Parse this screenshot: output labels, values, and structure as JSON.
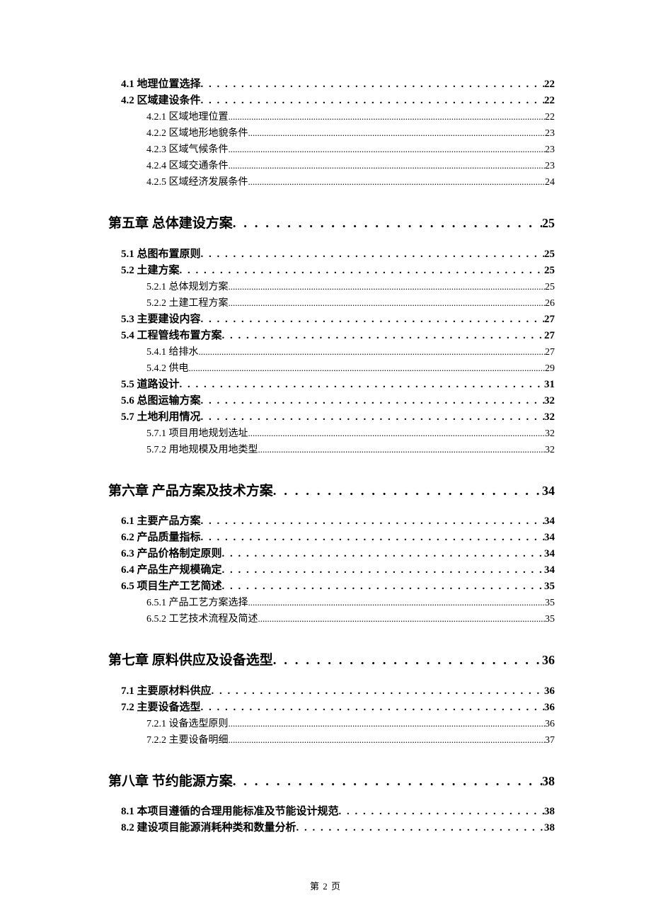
{
  "footer": "第 2 页",
  "dot1": " . . . . . . . . . . . . . . . . . . . . . . . . . . . . . . . . . . . . . . . . . . . . . . . . . . . . . . . . . . . . . . .",
  "dot2": " . . . . . . . . . . . . . . . . . . . . . . . . . . . . . . . . . . . . . . . . . . . . . . . . . . . . . . . . . . . . . . . . . . . . . . . . . . . . . . . . . .",
  "dot3": "..............................................................................................................................................................................",
  "entries": [
    {
      "level": 2,
      "label": "4.1 地理位置选择",
      "page": "22"
    },
    {
      "level": 2,
      "label": "4.2 区域建设条件",
      "page": "22"
    },
    {
      "level": 3,
      "label": "4.2.1 区域地理位置",
      "page": "22"
    },
    {
      "level": 3,
      "label": "4.2.2 区域地形地貌条件",
      "page": "23"
    },
    {
      "level": 3,
      "label": "4.2.3 区域气候条件",
      "page": "23"
    },
    {
      "level": 3,
      "label": "4.2.4 区域交通条件",
      "page": "23"
    },
    {
      "level": 3,
      "label": "4.2.5 区域经济发展条件",
      "page": "24"
    },
    {
      "level": 1,
      "label": "第五章 总体建设方案",
      "page": "25"
    },
    {
      "level": 2,
      "label": "5.1 总图布置原则",
      "page": "25"
    },
    {
      "level": 2,
      "label": "5.2 土建方案",
      "page": "25"
    },
    {
      "level": 3,
      "label": "5.2.1 总体规划方案",
      "page": "25"
    },
    {
      "level": 3,
      "label": "5.2.2 土建工程方案",
      "page": "26"
    },
    {
      "level": 2,
      "label": "5.3 主要建设内容",
      "page": "27"
    },
    {
      "level": 2,
      "label": "5.4 工程管线布置方案",
      "page": "27"
    },
    {
      "level": 3,
      "label": "5.4.1 给排水",
      "page": "27"
    },
    {
      "level": 3,
      "label": "5.4.2 供电",
      "page": "29"
    },
    {
      "level": 2,
      "label": "5.5 道路设计",
      "page": "31"
    },
    {
      "level": 2,
      "label": "5.6 总图运输方案",
      "page": "32"
    },
    {
      "level": 2,
      "label": "5.7 土地利用情况",
      "page": "32"
    },
    {
      "level": 3,
      "label": "5.7.1 项目用地规划选址",
      "page": "32"
    },
    {
      "level": 3,
      "label": "5.7.2 用地规模及用地类型",
      "page": "32"
    },
    {
      "level": 1,
      "label": "第六章 产品方案及技术方案",
      "page": "34"
    },
    {
      "level": 2,
      "label": "6.1 主要产品方案",
      "page": "34"
    },
    {
      "level": 2,
      "label": "6.2 产品质量指标",
      "page": "34"
    },
    {
      "level": 2,
      "label": "6.3 产品价格制定原则",
      "page": "34"
    },
    {
      "level": 2,
      "label": "6.4 产品生产规模确定",
      "page": "34"
    },
    {
      "level": 2,
      "label": "6.5 项目生产工艺简述",
      "page": "35"
    },
    {
      "level": 3,
      "label": "6.5.1 产品工艺方案选择",
      "page": "35"
    },
    {
      "level": 3,
      "label": "6.5.2 工艺技术流程及简述",
      "page": "35"
    },
    {
      "level": 1,
      "label": "第七章 原料供应及设备选型",
      "page": "36"
    },
    {
      "level": 2,
      "label": "7.1 主要原材料供应",
      "page": "36"
    },
    {
      "level": 2,
      "label": "7.2 主要设备选型",
      "page": "36"
    },
    {
      "level": 3,
      "label": "7.2.1 设备选型原则",
      "page": "36"
    },
    {
      "level": 3,
      "label": "7.2.2 主要设备明细",
      "page": "37"
    },
    {
      "level": 1,
      "label": "第八章 节约能源方案",
      "page": "38"
    },
    {
      "level": 2,
      "label": "8.1 本项目遵循的合理用能标准及节能设计规范",
      "page": "38"
    },
    {
      "level": 2,
      "label": "8.2 建设项目能源消耗种类和数量分析",
      "page": "38"
    }
  ]
}
